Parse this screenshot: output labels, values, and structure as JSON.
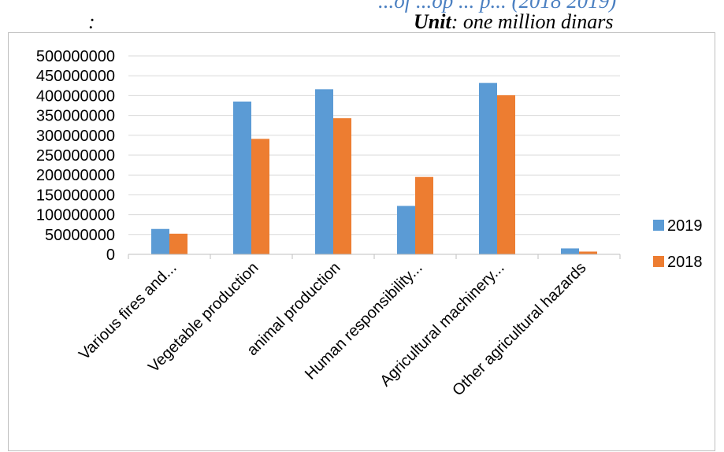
{
  "header": {
    "cut_title": "...of ...op ... p... (2018 2019)",
    "colon": ":",
    "unit_key": "Unit",
    "unit_value": ": one million dinars"
  },
  "chart_data": {
    "type": "bar",
    "categories": [
      "Various fires and...",
      "Vegetable production",
      "animal production",
      "Human responsibility...",
      "Agricultural machinery...",
      "Other agricultural hazards"
    ],
    "series": [
      {
        "name": "2019",
        "color": "#5b9bd5",
        "values": [
          64000000,
          385000000,
          416000000,
          122000000,
          432000000,
          15000000
        ]
      },
      {
        "name": "2018",
        "color": "#ed7d31",
        "values": [
          52000000,
          291000000,
          343000000,
          195000000,
          401000000,
          7000000
        ]
      }
    ],
    "ylim": [
      0,
      500000000
    ],
    "yticks": [
      "0",
      "50000000",
      "100000000",
      "150000000",
      "200000000",
      "250000000",
      "300000000",
      "350000000",
      "400000000",
      "450000000",
      "500000000"
    ],
    "grid": true,
    "legend": "right",
    "title": "",
    "xlabel": "",
    "ylabel": ""
  }
}
